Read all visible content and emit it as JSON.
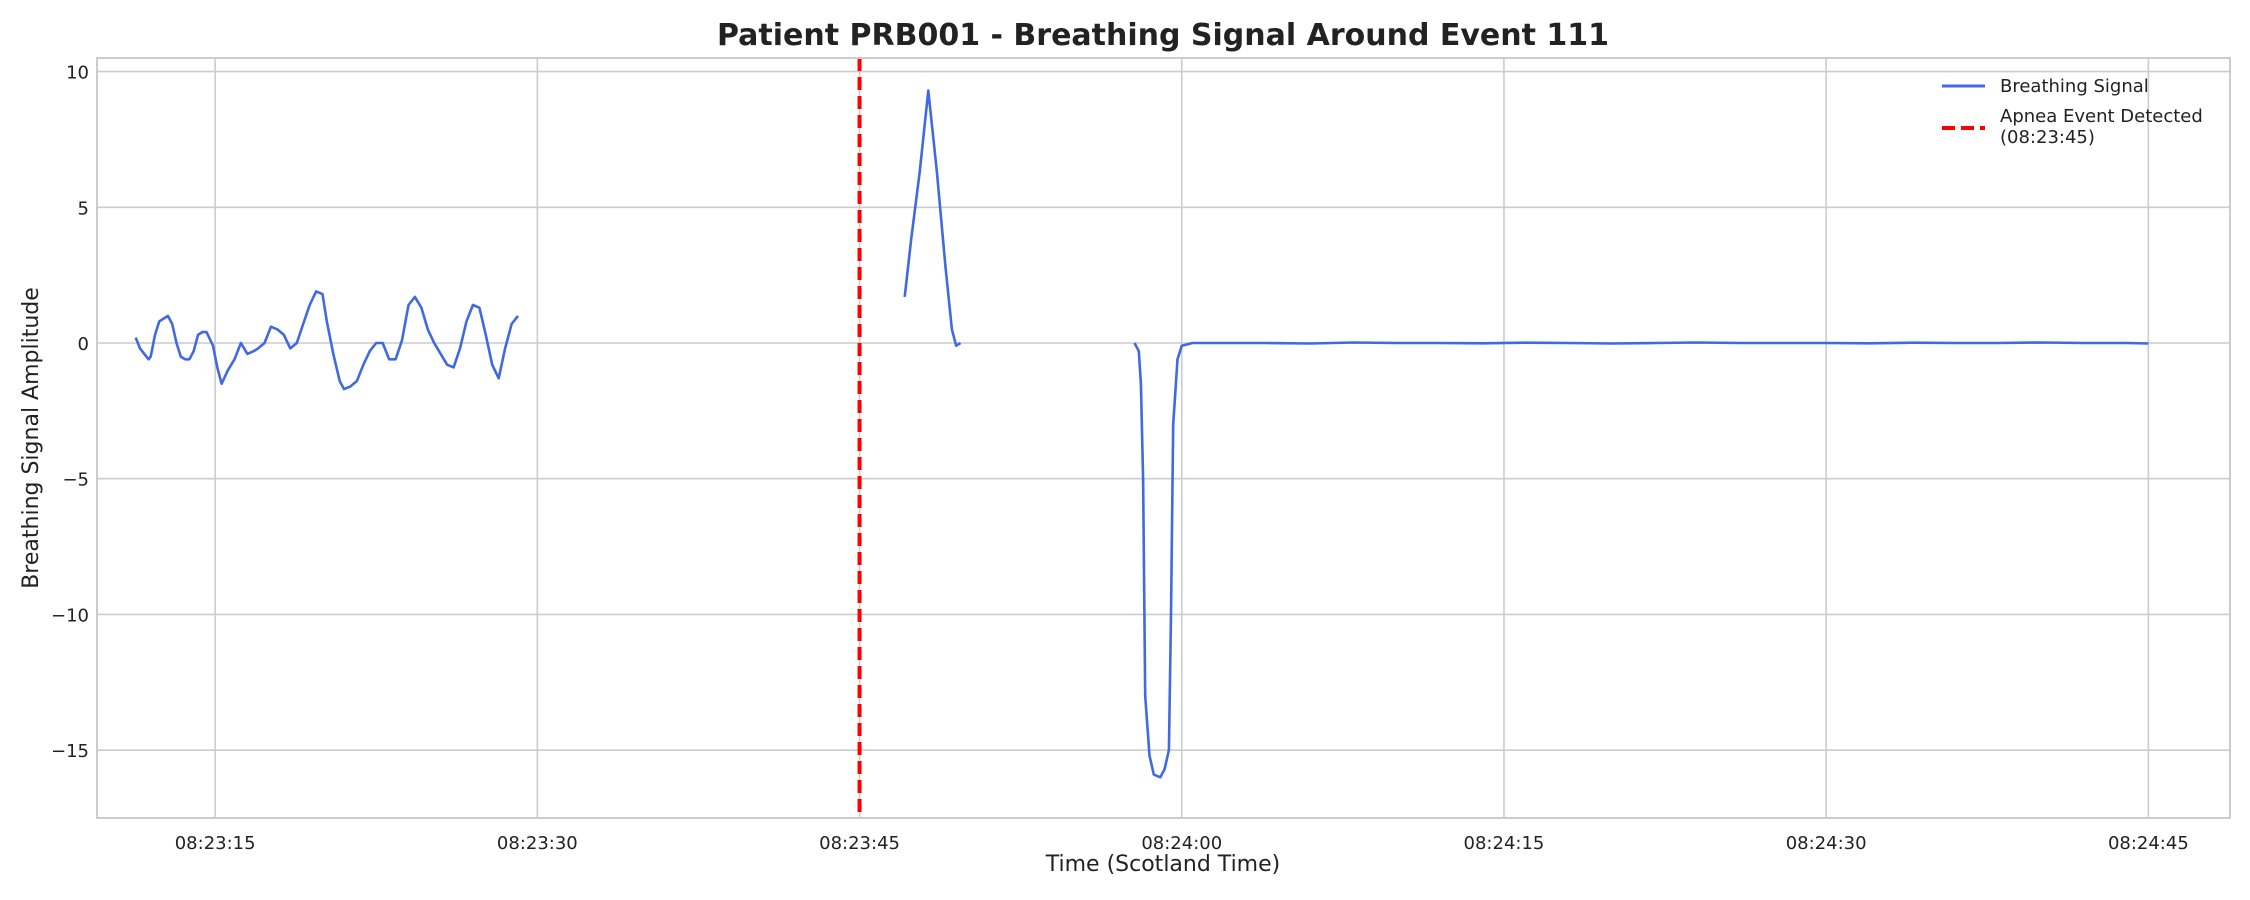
{
  "chart_data": {
    "type": "line",
    "title": "Patient PRB001 - Breathing Signal Around Event 111",
    "xlabel": "Time (Scotland Time)",
    "ylabel": "Breathing Signal Amplitude",
    "xlim": [
      "08:23:09.5",
      "08:24:48.8"
    ],
    "ylim": [
      -17.5,
      10.5
    ],
    "x_ticks": [
      "08:23:15",
      "08:23:30",
      "08:23:45",
      "08:24:00",
      "08:24:15",
      "08:24:30",
      "08:24:45"
    ],
    "y_ticks": [
      10,
      5,
      0,
      -5,
      -10,
      -15
    ],
    "y_tick_labels": [
      "10",
      "5",
      "0",
      "−5",
      "−10",
      "−15"
    ],
    "grid": true,
    "legend_position": "top-right",
    "series": [
      {
        "name": "Breathing Signal",
        "color": "#4169e1",
        "segments": [
          {
            "x": [
              "08:23:11.3",
              "08:23:11.5",
              "08:23:11.7",
              "08:23:11.9",
              "08:23:12.0",
              "08:23:12.2",
              "08:23:12.4",
              "08:23:12.6",
              "08:23:12.8",
              "08:23:13.0",
              "08:23:13.2",
              "08:23:13.4",
              "08:23:13.6",
              "08:23:13.8",
              "08:23:14.0",
              "08:23:14.2",
              "08:23:14.4",
              "08:23:14.6",
              "08:23:14.9",
              "08:23:15.1",
              "08:23:15.3",
              "08:23:15.6",
              "08:23:15.9",
              "08:23:16.2",
              "08:23:16.5",
              "08:23:16.8",
              "08:23:17.0",
              "08:23:17.3",
              "08:23:17.6",
              "08:23:17.9",
              "08:23:18.2",
              "08:23:18.5",
              "08:23:18.8",
              "08:23:19.1",
              "08:23:19.4",
              "08:23:19.7",
              "08:23:20.0",
              "08:23:20.2",
              "08:23:20.5",
              "08:23:20.8",
              "08:23:21.0",
              "08:23:21.3",
              "08:23:21.6",
              "08:23:21.9",
              "08:23:22.2",
              "08:23:22.5",
              "08:23:22.8",
              "08:23:23.1",
              "08:23:23.4",
              "08:23:23.7",
              "08:23:24.0",
              "08:23:24.3",
              "08:23:24.6",
              "08:23:24.9",
              "08:23:25.2",
              "08:23:25.5",
              "08:23:25.8",
              "08:23:26.1",
              "08:23:26.4",
              "08:23:26.7",
              "08:23:27.0",
              "08:23:27.3",
              "08:23:27.6",
              "08:23:27.9",
              "08:23:28.2",
              "08:23:28.5",
              "08:23:28.8",
              "08:23:29.1"
            ],
            "y": [
              0.2,
              -0.2,
              -0.4,
              -0.6,
              -0.5,
              0.3,
              0.8,
              0.9,
              1.0,
              0.7,
              0.0,
              -0.5,
              -0.6,
              -0.6,
              -0.3,
              0.3,
              0.4,
              0.4,
              -0.1,
              -0.9,
              -1.5,
              -1.0,
              -0.6,
              0.0,
              -0.4,
              -0.3,
              -0.2,
              0.0,
              0.6,
              0.5,
              0.3,
              -0.2,
              0.0,
              0.7,
              1.4,
              1.9,
              1.8,
              0.8,
              -0.4,
              -1.4,
              -1.7,
              -1.6,
              -1.4,
              -0.8,
              -0.3,
              0.0,
              0.0,
              -0.6,
              -0.6,
              0.1,
              1.4,
              1.7,
              1.3,
              0.5,
              0.0,
              -0.4,
              -0.8,
              -0.9,
              -0.2,
              0.8,
              1.4,
              1.3,
              0.3,
              -0.8,
              -1.3,
              -0.2,
              0.7,
              1.0
            ]
          },
          {
            "x": [
              "08:23:47.1",
              "08:23:47.4",
              "08:23:47.8",
              "08:23:48.2",
              "08:23:48.6",
              "08:23:49.0",
              "08:23:49.3",
              "08:23:49.5",
              "08:23:49.7"
            ],
            "y": [
              1.7,
              3.8,
              6.3,
              9.3,
              6.3,
              2.8,
              0.5,
              -0.1,
              0.0
            ]
          },
          {
            "x": [
              "08:23:57.8",
              "08:23:58.0",
              "08:23:58.1",
              "08:23:58.2",
              "08:23:58.3",
              "08:23:58.5",
              "08:23:58.7",
              "08:23:59.0",
              "08:23:59.2",
              "08:23:59.4",
              "08:23:59.5",
              "08:23:59.6",
              "08:23:59.8",
              "08:24:00.0",
              "08:24:00.5",
              "08:24:02.0",
              "08:24:04.0",
              "08:24:06.0",
              "08:24:08.0",
              "08:24:10.0",
              "08:24:12.0",
              "08:24:14.0",
              "08:24:16.0",
              "08:24:18.0",
              "08:24:20.0",
              "08:24:22.0",
              "08:24:24.0",
              "08:24:26.0",
              "08:24:28.0",
              "08:24:30.0",
              "08:24:32.0",
              "08:24:34.0",
              "08:24:36.0",
              "08:24:38.0",
              "08:24:40.0",
              "08:24:42.0",
              "08:24:44.0",
              "08:24:45.0"
            ],
            "y": [
              0.0,
              -0.3,
              -1.5,
              -5.0,
              -13.0,
              -15.2,
              -15.9,
              -16.0,
              -15.7,
              -15.0,
              -10.0,
              -3.0,
              -0.6,
              -0.1,
              0.0,
              0.0,
              0.0,
              -0.02,
              0.02,
              0.0,
              0.0,
              -0.01,
              0.01,
              0.0,
              -0.02,
              0.0,
              0.02,
              0.0,
              0.0,
              0.0,
              -0.01,
              0.01,
              0.0,
              0.0,
              0.02,
              0.0,
              0.0,
              -0.02
            ]
          }
        ]
      }
    ],
    "event_line": {
      "name": "Apnea Event Detected",
      "time_label": "(08:23:45)",
      "x": "08:23:45",
      "color": "#ff0000",
      "style": "dashed"
    }
  }
}
